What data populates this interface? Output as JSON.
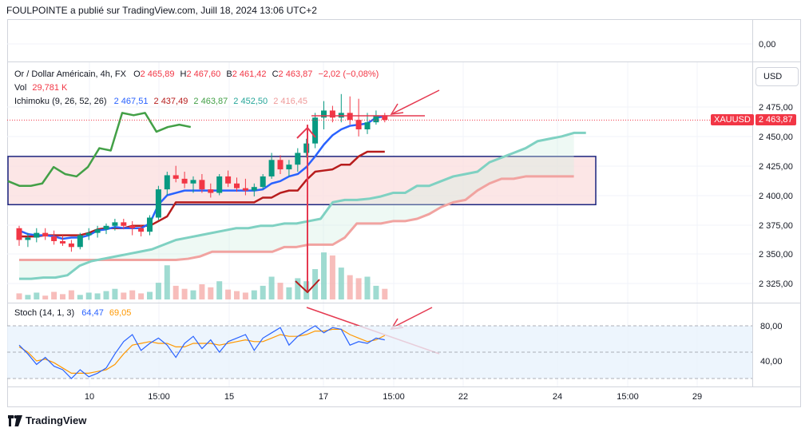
{
  "header": "FOULPOINTE a publié sur TradingView.com, Juill 18, 2024 13:06 UTC+2",
  "brand": "TradingView",
  "currency_button": "USD",
  "price_tag": {
    "symbol": "XAUUSD",
    "value": "2 463,87"
  },
  "legend_main": {
    "title": "Or / Dollar Américain, 4h, FX",
    "o_label": "O",
    "o": "2 465,89",
    "h_label": "H",
    "h": "2 467,60",
    "b_label": "B",
    "b": "2 461,42",
    "c_label": "C",
    "c": "2 463,87",
    "change": "−2,02 (−0,08%)"
  },
  "legend_vol": {
    "label": "Vol",
    "value": "29,781 K"
  },
  "legend_ichimoku": {
    "label": "Ichimoku (9, 26, 52, 26)",
    "values": [
      "2 467,51",
      "2 437,49",
      "2 463,87",
      "2 452,50",
      "2 416,45"
    ]
  },
  "legend_stoch": {
    "label": "Stoch (14, 1, 3)",
    "k": "64,47",
    "d": "69,05"
  },
  "price_axis": {
    "labels": [
      "0,00",
      "2 475,00",
      "2 450,00",
      "2 425,00",
      "2 400,00",
      "2 375,00",
      "2 350,00",
      "2 325,00"
    ]
  },
  "stoch_axis": {
    "labels": [
      "80,00",
      "40,00"
    ]
  },
  "time_axis": {
    "labels": [
      "10",
      "15:00",
      "15",
      "17",
      "15:00",
      "22",
      "24",
      "15:00",
      "29"
    ]
  },
  "colors": {
    "up": "#089981",
    "down": "#f23645",
    "tenkan": "#2962ff",
    "kijun": "#b71c1c",
    "chikou": "#43a047",
    "spanA": "#7fd1c2",
    "spanB": "#f1a3a0",
    "stochK": "#2962ff",
    "stochD": "#ff9800",
    "zone": "#fbdede",
    "zoneBorder": "#1a237e",
    "annotation": "#e53950"
  },
  "chart_data": [
    {
      "type": "candlestick",
      "title": "Or / Dollar Américain, 4h, FX",
      "y_range": [
        2310,
        2490
      ],
      "candles": [
        [
          2372,
          2374,
          2357,
          2362
        ],
        [
          2362,
          2368,
          2356,
          2364
        ],
        [
          2364,
          2372,
          2360,
          2368
        ],
        [
          2368,
          2372,
          2362,
          2365
        ],
        [
          2365,
          2370,
          2358,
          2361
        ],
        [
          2361,
          2366,
          2357,
          2359
        ],
        [
          2359,
          2362,
          2352,
          2356
        ],
        [
          2356,
          2368,
          2354,
          2366
        ],
        [
          2366,
          2372,
          2362,
          2368
        ],
        [
          2368,
          2374,
          2364,
          2371
        ],
        [
          2371,
          2376,
          2367,
          2374
        ],
        [
          2374,
          2380,
          2370,
          2377
        ],
        [
          2377,
          2380,
          2371,
          2374
        ],
        [
          2374,
          2378,
          2366,
          2372
        ],
        [
          2372,
          2375,
          2365,
          2369
        ],
        [
          2369,
          2383,
          2366,
          2381
        ],
        [
          2381,
          2408,
          2379,
          2405
        ],
        [
          2405,
          2420,
          2400,
          2417
        ],
        [
          2417,
          2425,
          2411,
          2414
        ],
        [
          2414,
          2420,
          2406,
          2410
        ],
        [
          2410,
          2416,
          2402,
          2413
        ],
        [
          2413,
          2418,
          2402,
          2405
        ],
        [
          2405,
          2410,
          2398,
          2402
        ],
        [
          2402,
          2418,
          2400,
          2416
        ],
        [
          2416,
          2421,
          2407,
          2410
        ],
        [
          2410,
          2415,
          2403,
          2406
        ],
        [
          2406,
          2414,
          2400,
          2404
        ],
        [
          2404,
          2410,
          2399,
          2407
        ],
        [
          2407,
          2418,
          2405,
          2416
        ],
        [
          2416,
          2436,
          2414,
          2430
        ],
        [
          2430,
          2434,
          2418,
          2422
        ],
        [
          2422,
          2430,
          2416,
          2426
        ],
        [
          2426,
          2440,
          2420,
          2436
        ],
        [
          2436,
          2448,
          2432,
          2444
        ],
        [
          2444,
          2470,
          2440,
          2466
        ],
        [
          2466,
          2480,
          2456,
          2472
        ],
        [
          2472,
          2476,
          2462,
          2466
        ],
        [
          2466,
          2486,
          2462,
          2470
        ],
        [
          2470,
          2484,
          2460,
          2464
        ],
        [
          2464,
          2482,
          2450,
          2456
        ],
        [
          2456,
          2470,
          2452,
          2462
        ],
        [
          2462,
          2472,
          2460,
          2468
        ],
        [
          2468,
          2470,
          2462,
          2464
        ]
      ]
    },
    {
      "type": "line",
      "title": "Ichimoku (9, 26, 52, 26)",
      "series": [
        {
          "name": "Tenkan",
          "values": [
            2370,
            2367,
            2366,
            2366,
            2365,
            2363,
            2364,
            2364,
            2366,
            2370,
            2371,
            2373,
            2372,
            2372,
            2372,
            2376,
            2392,
            2400,
            2402,
            2404,
            2404,
            2404,
            2404,
            2404,
            2404,
            2404,
            2404,
            2404,
            2405,
            2410,
            2412,
            2416,
            2418,
            2424,
            2433,
            2443,
            2451,
            2456,
            2459,
            2460,
            2461,
            2466,
            2467
          ]
        },
        {
          "name": "Kijun",
          "values": [
            2365,
            2365,
            2365,
            2366,
            2366,
            2366,
            2366,
            2366,
            2368,
            2371,
            2372,
            2372,
            2372,
            2374,
            2374,
            2374,
            2378,
            2382,
            2394,
            2394,
            2394,
            2394,
            2394,
            2394,
            2394,
            2394,
            2394,
            2394,
            2398,
            2398,
            2402,
            2404,
            2404,
            2413,
            2420,
            2421,
            2422,
            2426,
            2426,
            2433,
            2437,
            2437,
            2437
          ]
        },
        {
          "name": "Chikou",
          "values": [
            2412,
            2408,
            2408,
            2410,
            2424,
            2418,
            2416,
            2424,
            2440,
            2438,
            2470,
            2468,
            2470,
            2454,
            2458,
            2460,
            2458
          ]
        },
        {
          "name": "Span A",
          "values": [
            2329,
            2329,
            2330,
            2330,
            2332,
            2340,
            2344,
            2346,
            2348,
            2350,
            2352,
            2354,
            2358,
            2362,
            2364,
            2366,
            2368,
            2370,
            2372,
            2372,
            2374,
            2374,
            2376,
            2376,
            2378,
            2380,
            2394,
            2396,
            2396,
            2397,
            2399,
            2402,
            2402,
            2408,
            2408,
            2412,
            2416,
            2418,
            2420,
            2428,
            2432,
            2436,
            2440,
            2446,
            2448,
            2450,
            2453,
            2453
          ]
        },
        {
          "name": "Span B",
          "values": [
            2345,
            2345,
            2345,
            2345,
            2345,
            2345,
            2345,
            2345,
            2345,
            2345,
            2345,
            2345,
            2345,
            2345,
            2346,
            2348,
            2352,
            2352,
            2352,
            2352,
            2352,
            2352,
            2356,
            2356,
            2358,
            2358,
            2358,
            2364,
            2376,
            2376,
            2376,
            2378,
            2378,
            2380,
            2384,
            2390,
            2394,
            2396,
            2404,
            2410,
            2414,
            2414,
            2416,
            2416,
            2416,
            2416,
            2416
          ]
        }
      ]
    },
    {
      "type": "bar",
      "title": "Vol",
      "values": [
        8,
        6,
        9,
        5,
        10,
        7,
        12,
        6,
        9,
        8,
        11,
        14,
        9,
        12,
        8,
        10,
        22,
        45,
        18,
        14,
        12,
        20,
        16,
        24,
        13,
        11,
        9,
        12,
        18,
        30,
        22,
        16,
        28,
        24,
        40,
        62,
        58,
        42,
        32,
        28,
        30,
        18,
        14
      ]
    },
    {
      "type": "line",
      "title": "Stoch (14, 1, 3)",
      "ylim": [
        0,
        100
      ],
      "series": [
        {
          "name": "%K",
          "values": [
            58,
            48,
            36,
            44,
            34,
            30,
            20,
            30,
            22,
            26,
            32,
            48,
            62,
            70,
            52,
            60,
            66,
            58,
            44,
            60,
            68,
            54,
            64,
            50,
            62,
            66,
            70,
            52,
            66,
            72,
            78,
            58,
            68,
            74,
            80,
            72,
            78,
            76,
            58,
            62,
            60,
            66,
            64
          ]
        },
        {
          "name": "%D",
          "values": [
            56,
            50,
            40,
            42,
            38,
            32,
            26,
            26,
            26,
            28,
            30,
            36,
            48,
            58,
            60,
            62,
            60,
            60,
            56,
            56,
            60,
            60,
            60,
            58,
            60,
            62,
            64,
            62,
            62,
            66,
            70,
            68,
            68,
            70,
            74,
            74,
            76,
            76,
            70,
            66,
            62,
            64,
            69
          ]
        }
      ]
    }
  ]
}
